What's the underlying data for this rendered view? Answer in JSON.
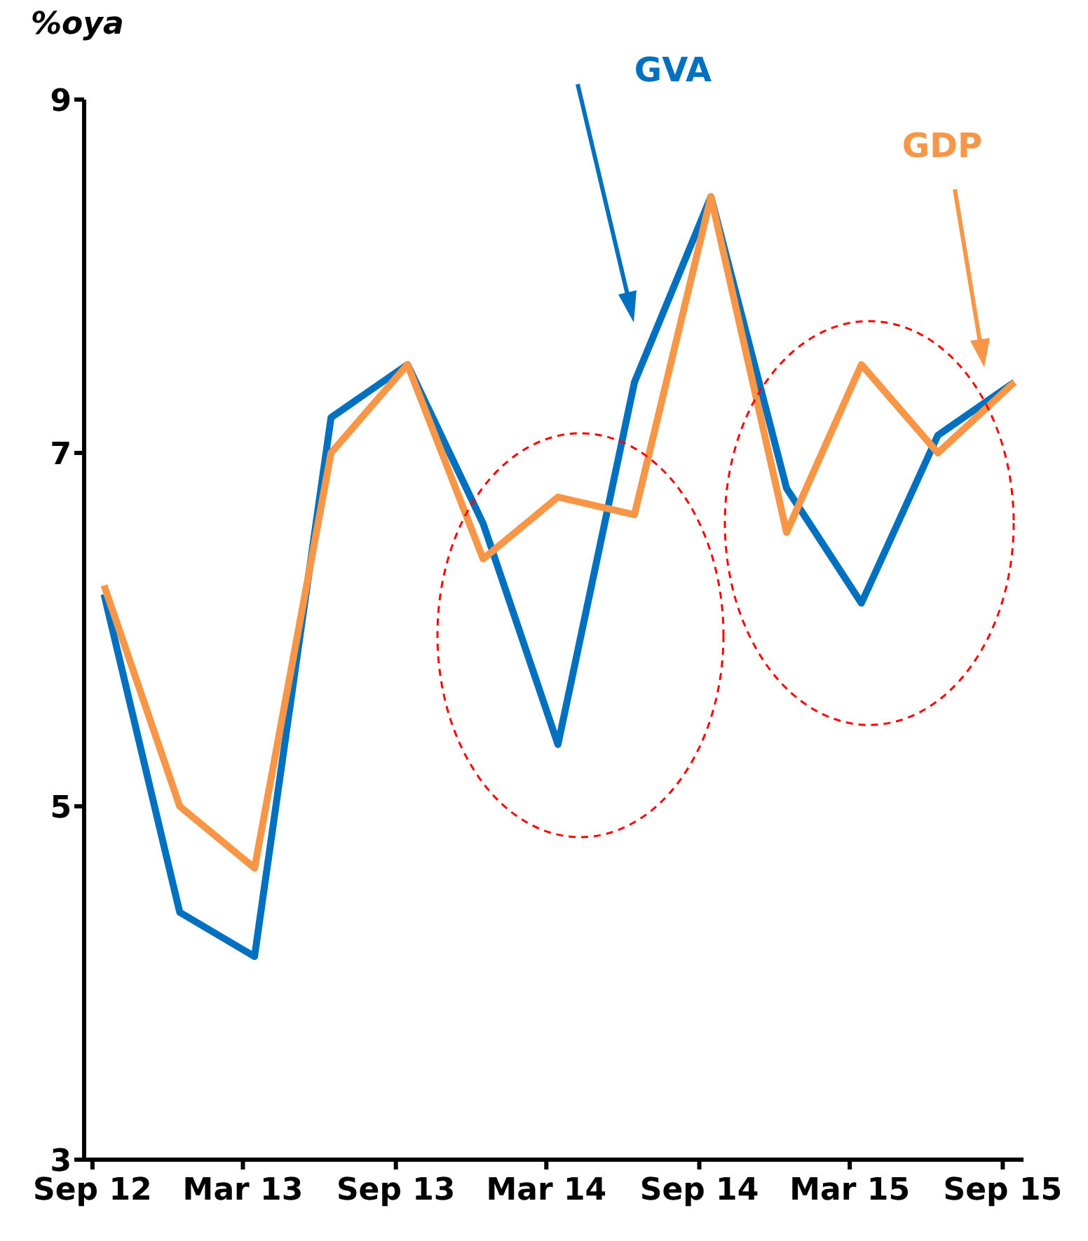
{
  "chart_data": {
    "type": "line",
    "ylabel": "%oya",
    "x": [
      "2012-09-15",
      "2012-12-15",
      "2013-03-15",
      "2013-06-15",
      "2013-09-15",
      "2013-12-15",
      "2014-03-15",
      "2014-06-15",
      "2014-09-15",
      "2014-12-15",
      "2015-03-15",
      "2015-06-15",
      "2015-09-15"
    ],
    "series": [
      {
        "name": "GVA",
        "color": "#0070c0",
        "values": [
          6.2,
          4.4,
          4.15,
          7.2,
          7.5,
          6.6,
          5.35,
          7.4,
          8.45,
          6.8,
          6.15,
          7.1,
          7.4
        ]
      },
      {
        "name": "GDP",
        "color": "#f79646",
        "values": [
          6.25,
          5.0,
          4.65,
          7.0,
          7.5,
          6.4,
          6.75,
          6.65,
          8.45,
          6.55,
          7.5,
          7.0,
          7.4
        ]
      }
    ],
    "xlim": [
      "2012-08-22",
      "2015-09-26"
    ],
    "xticks": [
      {
        "value": "2012-09-01",
        "label": "Sep 12"
      },
      {
        "value": "2013-03-01",
        "label": "Mar 13"
      },
      {
        "value": "2013-09-01",
        "label": "Sep 13"
      },
      {
        "value": "2014-03-01",
        "label": "Mar 14"
      },
      {
        "value": "2014-09-01",
        "label": "Sep 14"
      },
      {
        "value": "2015-03-01",
        "label": "Mar 15"
      },
      {
        "value": "2015-09-01",
        "label": "Sep 15"
      }
    ],
    "ylim": [
      3,
      9
    ],
    "yticks": [
      3,
      5,
      7,
      9
    ],
    "grid": false,
    "legend": false,
    "line_style": "solid",
    "marker": "none"
  }
}
